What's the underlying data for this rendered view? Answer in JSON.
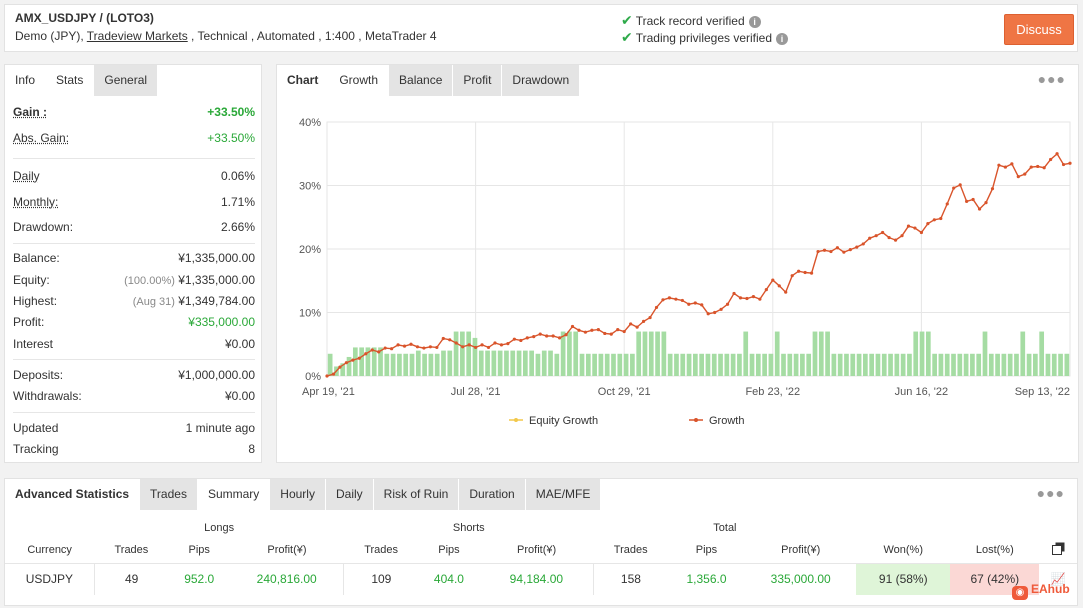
{
  "header": {
    "title": "AMX_USDJPY / (LOTO3)",
    "sub_prefix": "Demo (JPY), ",
    "broker_link": "Tradeview Markets",
    "sub_suffix": " , Technical , Automated , 1:400 , MetaTrader 4",
    "verify1": "Track record verified",
    "verify2": "Trading privileges verified",
    "discuss": "Discuss"
  },
  "stats_tabs": [
    "Info",
    "Stats",
    "General"
  ],
  "stats": {
    "gain_label": "Gain :",
    "gain": "+33.50%",
    "abs_gain_label": "Abs. Gain:",
    "abs_gain": "+33.50%",
    "daily_label": "Daily",
    "daily": "0.06%",
    "monthly_label": "Monthly:",
    "monthly": "1.71%",
    "drawdown_label": "Drawdown:",
    "drawdown": "2.66%",
    "balance_label": "Balance:",
    "balance": "¥1,335,000.00",
    "equity_label": "Equity:",
    "equity_pct": "(100.00%)",
    "equity": "¥1,335,000.00",
    "highest_label": "Highest:",
    "highest_date": "(Aug 31)",
    "highest": "¥1,349,784.00",
    "profit_label": "Profit:",
    "profit": "¥335,000.00",
    "interest_label": "Interest",
    "interest": "¥0.00",
    "deposits_label": "Deposits:",
    "deposits": "¥1,000,000.00",
    "withdrawals_label": "Withdrawals:",
    "withdrawals": "¥0.00",
    "updated_label": "Updated",
    "updated": "1 minute ago",
    "tracking_label": "Tracking",
    "tracking": "8"
  },
  "chart_tabs": [
    "Chart",
    "Growth",
    "Balance",
    "Profit",
    "Drawdown"
  ],
  "chart_data": {
    "type": "line",
    "title": "",
    "x_ticks": [
      "Apr 19, '21",
      "Jul 28, '21",
      "Oct 29, '21",
      "Feb 23, '22",
      "Jun 16, '22",
      "Sep 13, '22"
    ],
    "y_ticks": [
      "0%",
      "10%",
      "20%",
      "30%",
      "40%"
    ],
    "ylim": [
      0,
      40
    ],
    "grid": true,
    "legend_position": "bottom",
    "series": [
      {
        "name": "Equity Growth",
        "color": "#f2c84b",
        "values": []
      },
      {
        "name": "Growth",
        "color": "#d9542b",
        "values": [
          0,
          0.3,
          1.4,
          2.1,
          2.5,
          2.8,
          3.5,
          4.1,
          3.8,
          4.4,
          4.3,
          4.9,
          4.7,
          5.0,
          4.6,
          4.4,
          4.6,
          4.5,
          5.9,
          5.7,
          5.2,
          4.6,
          4.9,
          4.5,
          4.9,
          4.5,
          5.2,
          4.9,
          5.1,
          5.8,
          5.6,
          6.0,
          6.2,
          6.6,
          6.3,
          6.3,
          6.0,
          6.5,
          7.8,
          7.2,
          6.9,
          7.2,
          7.3,
          6.7,
          6.6,
          7.3,
          7.0,
          8.2,
          7.7,
          8.6,
          9.2,
          10.8,
          12.0,
          12.3,
          12.1,
          11.9,
          11.3,
          11.5,
          11.2,
          9.8,
          10.0,
          10.5,
          11.3,
          13.0,
          12.3,
          12.2,
          12.5,
          12.1,
          13.6,
          15.1,
          14.2,
          13.2,
          15.8,
          16.5,
          16.3,
          16.2,
          19.6,
          19.8,
          19.6,
          20.2,
          19.5,
          19.9,
          20.3,
          20.8,
          21.7,
          22.1,
          22.6,
          21.8,
          21.4,
          22.1,
          23.6,
          23.3,
          22.6,
          24.0,
          24.6,
          24.8,
          27.1,
          29.6,
          30.1,
          27.5,
          27.8,
          26.3,
          27.3,
          29.5,
          33.2,
          32.9,
          33.4,
          31.4,
          31.8,
          32.9,
          33.0,
          32.8,
          34.1,
          35.0,
          33.3,
          33.5
        ]
      },
      {
        "name": "volume",
        "color": "#a5dca3",
        "values": [
          3.5,
          1.5,
          2,
          3,
          4.5,
          4.5,
          4.5,
          4.5,
          4.5,
          3.5,
          3.5,
          3.5,
          3.5,
          3.5,
          4,
          3.5,
          3.5,
          3.5,
          4,
          4,
          7,
          7,
          7,
          6,
          4,
          4,
          4,
          4,
          4,
          4,
          4,
          4,
          4,
          3.5,
          4,
          4,
          3.5,
          7,
          7,
          7,
          3.5,
          3.5,
          3.5,
          3.5,
          3.5,
          3.5,
          3.5,
          3.5,
          3.5,
          7,
          7,
          7,
          7,
          7,
          3.5,
          3.5,
          3.5,
          3.5,
          3.5,
          3.5,
          3.5,
          3.5,
          3.5,
          3.5,
          3.5,
          3.5,
          7,
          3.5,
          3.5,
          3.5,
          3.5,
          7,
          3.5,
          3.5,
          3.5,
          3.5,
          3.5,
          7,
          7,
          7,
          3.5,
          3.5,
          3.5,
          3.5,
          3.5,
          3.5,
          3.5,
          3.5,
          3.5,
          3.5,
          3.5,
          3.5,
          3.5,
          7,
          7,
          7,
          3.5,
          3.5,
          3.5,
          3.5,
          3.5,
          3.5,
          3.5,
          3.5,
          7,
          3.5,
          3.5,
          3.5,
          3.5,
          3.5,
          7,
          3.5,
          3.5,
          7,
          3.5,
          3.5,
          3.5,
          3.5
        ]
      }
    ]
  },
  "adv": {
    "title": "Advanced Statistics",
    "tabs": [
      "Trades",
      "Summary",
      "Hourly",
      "Daily",
      "Risk of Ruin",
      "Duration",
      "MAE/MFE"
    ],
    "groups": [
      "Longs",
      "Shorts",
      "Total"
    ],
    "cols": [
      "Currency",
      "Trades",
      "Pips",
      "Profit(¥)",
      "Trades",
      "Pips",
      "Profit(¥)",
      "Trades",
      "Pips",
      "Profit(¥)",
      "Won(%)",
      "Lost(%)"
    ],
    "row": [
      "USDJPY",
      "49",
      "952.0",
      "240,816.00",
      "109",
      "404.0",
      "94,184.00",
      "158",
      "1,356.0",
      "335,000.00",
      "91 (58%)",
      "67 (42%)"
    ]
  },
  "watermark": "EAhub"
}
